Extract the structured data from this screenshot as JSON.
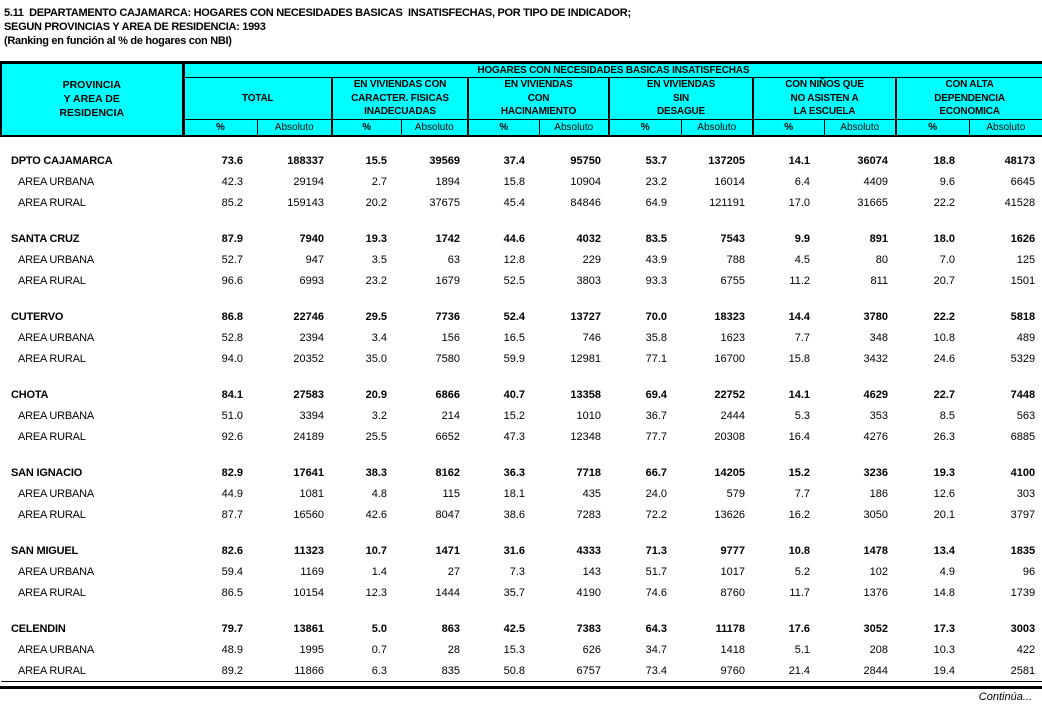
{
  "page": {
    "title_line1": "5.11  DEPARTAMENTO CAJAMARCA: HOGARES CON NECESIDADES BASICAS  INSATISFECHAS, POR TIPO DE INDICADOR;",
    "title_line2": "SEGUN PROVINCIAS Y AREA DE RESIDENCIA: 1993",
    "title_line3": "(Ranking en función al % de hogares con NBI)",
    "continua": "Continúa..."
  },
  "table": {
    "colors": {
      "header_bg": "#00FFFF",
      "border": "#000000",
      "body_bg": "#FFFFFF"
    },
    "header": {
      "col1": "PROVINCIA\nY AREA DE\nRESIDENCIA",
      "span_title": "HOGARES CON NECESIDADES BASICAS INSATISFECHAS",
      "groups": [
        "TOTAL",
        "EN VIVIENDAS CON\nCARACTER. FISICAS\nINADECUADAS",
        "EN VIVIENDAS\nCON\nHACINAMIENTO",
        "EN VIVIENDAS\nSIN\nDESAGUE",
        "CON NIÑOS QUE\nNO ASISTEN A\nLA ESCUELA",
        "CON ALTA\nDEPENDENCIA\nECONOMICA"
      ],
      "pct_label": "%",
      "abs_label": "Absoluto"
    },
    "groups": [
      {
        "rows": [
          {
            "label": "DPTO CAJAMARCA",
            "values": [
              "73.6",
              "188337",
              "15.5",
              "39569",
              "37.4",
              "95750",
              "53.7",
              "137205",
              "14.1",
              "36074",
              "18.8",
              "48173"
            ]
          },
          {
            "label": "AREA URBANA",
            "values": [
              "42.3",
              "29194",
              "2.7",
              "1894",
              "15.8",
              "10904",
              "23.2",
              "16014",
              "6.4",
              "4409",
              "9.6",
              "6645"
            ]
          },
          {
            "label": "AREA RURAL",
            "values": [
              "85.2",
              "159143",
              "20.2",
              "37675",
              "45.4",
              "84846",
              "64.9",
              "121191",
              "17.0",
              "31665",
              "22.2",
              "41528"
            ]
          }
        ]
      },
      {
        "rows": [
          {
            "label": "SANTA CRUZ",
            "values": [
              "87.9",
              "7940",
              "19.3",
              "1742",
              "44.6",
              "4032",
              "83.5",
              "7543",
              "9.9",
              "891",
              "18.0",
              "1626"
            ]
          },
          {
            "label": "AREA URBANA",
            "values": [
              "52.7",
              "947",
              "3.5",
              "63",
              "12.8",
              "229",
              "43.9",
              "788",
              "4.5",
              "80",
              "7.0",
              "125"
            ]
          },
          {
            "label": "AREA RURAL",
            "values": [
              "96.6",
              "6993",
              "23.2",
              "1679",
              "52.5",
              "3803",
              "93.3",
              "6755",
              "11.2",
              "811",
              "20.7",
              "1501"
            ]
          }
        ]
      },
      {
        "rows": [
          {
            "label": "CUTERVO",
            "values": [
              "86.8",
              "22746",
              "29.5",
              "7736",
              "52.4",
              "13727",
              "70.0",
              "18323",
              "14.4",
              "3780",
              "22.2",
              "5818"
            ]
          },
          {
            "label": "AREA URBANA",
            "values": [
              "52.8",
              "2394",
              "3.4",
              "156",
              "16.5",
              "746",
              "35.8",
              "1623",
              "7.7",
              "348",
              "10.8",
              "489"
            ]
          },
          {
            "label": "AREA RURAL",
            "values": [
              "94.0",
              "20352",
              "35.0",
              "7580",
              "59.9",
              "12981",
              "77.1",
              "16700",
              "15.8",
              "3432",
              "24.6",
              "5329"
            ]
          }
        ]
      },
      {
        "rows": [
          {
            "label": "CHOTA",
            "values": [
              "84.1",
              "27583",
              "20.9",
              "6866",
              "40.7",
              "13358",
              "69.4",
              "22752",
              "14.1",
              "4629",
              "22.7",
              "7448"
            ]
          },
          {
            "label": "AREA URBANA",
            "values": [
              "51.0",
              "3394",
              "3.2",
              "214",
              "15.2",
              "1010",
              "36.7",
              "2444",
              "5.3",
              "353",
              "8.5",
              "563"
            ]
          },
          {
            "label": "AREA RURAL",
            "values": [
              "92.6",
              "24189",
              "25.5",
              "6652",
              "47.3",
              "12348",
              "77.7",
              "20308",
              "16.4",
              "4276",
              "26.3",
              "6885"
            ]
          }
        ]
      },
      {
        "rows": [
          {
            "label": "SAN IGNACIO",
            "values": [
              "82.9",
              "17641",
              "38.3",
              "8162",
              "36.3",
              "7718",
              "66.7",
              "14205",
              "15.2",
              "3236",
              "19.3",
              "4100"
            ]
          },
          {
            "label": "AREA URBANA",
            "values": [
              "44.9",
              "1081",
              "4.8",
              "115",
              "18.1",
              "435",
              "24.0",
              "579",
              "7.7",
              "186",
              "12.6",
              "303"
            ]
          },
          {
            "label": "AREA RURAL",
            "values": [
              "87.7",
              "16560",
              "42.6",
              "8047",
              "38.6",
              "7283",
              "72.2",
              "13626",
              "16.2",
              "3050",
              "20.1",
              "3797"
            ]
          }
        ]
      },
      {
        "rows": [
          {
            "label": "SAN MIGUEL",
            "values": [
              "82.6",
              "11323",
              "10.7",
              "1471",
              "31.6",
              "4333",
              "71.3",
              "9777",
              "10.8",
              "1478",
              "13.4",
              "1835"
            ]
          },
          {
            "label": "AREA URBANA",
            "values": [
              "59.4",
              "1169",
              "1.4",
              "27",
              "7.3",
              "143",
              "51.7",
              "1017",
              "5.2",
              "102",
              "4.9",
              "96"
            ]
          },
          {
            "label": "AREA RURAL",
            "values": [
              "86.5",
              "10154",
              "12.3",
              "1444",
              "35.7",
              "4190",
              "74.6",
              "8760",
              "11.7",
              "1376",
              "14.8",
              "1739"
            ]
          }
        ]
      },
      {
        "rows": [
          {
            "label": "CELENDIN",
            "values": [
              "79.7",
              "13861",
              "5.0",
              "863",
              "42.5",
              "7383",
              "64.3",
              "11178",
              "17.6",
              "3052",
              "17.3",
              "3003"
            ]
          },
          {
            "label": "AREA URBANA",
            "values": [
              "48.9",
              "1995",
              "0.7",
              "28",
              "15.3",
              "626",
              "34.7",
              "1418",
              "5.1",
              "208",
              "10.3",
              "422"
            ]
          },
          {
            "label": "AREA RURAL",
            "values": [
              "89.2",
              "11866",
              "6.3",
              "835",
              "50.8",
              "6757",
              "73.4",
              "9760",
              "21.4",
              "2844",
              "19.4",
              "2581"
            ]
          }
        ]
      }
    ]
  }
}
